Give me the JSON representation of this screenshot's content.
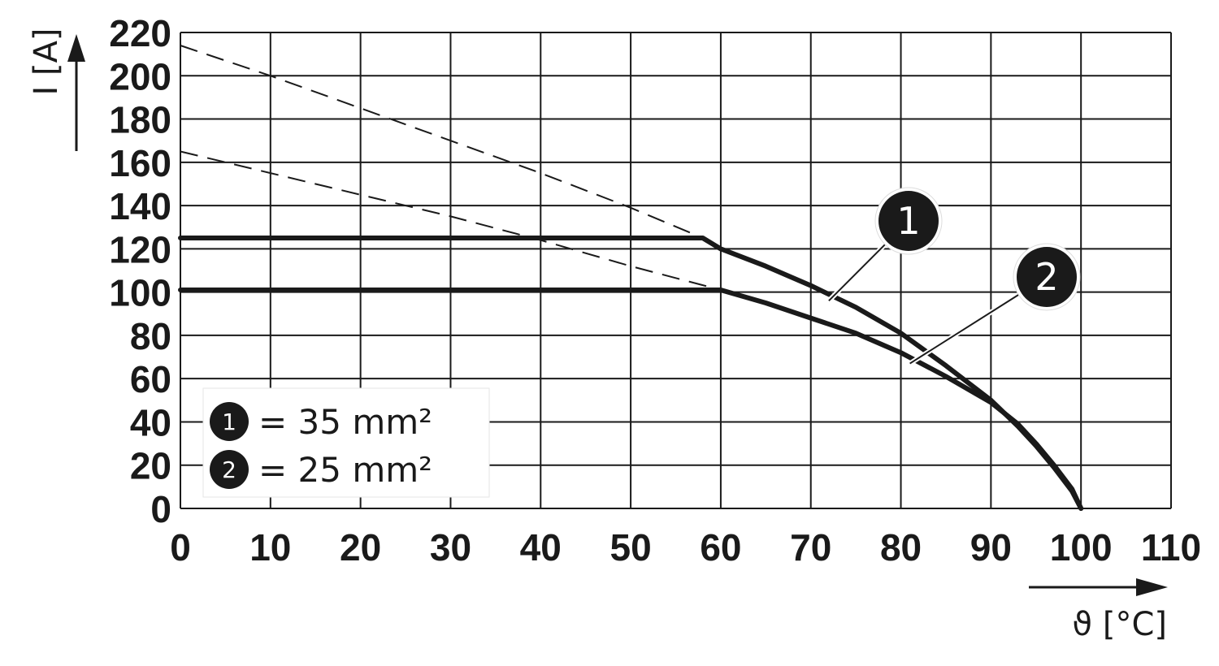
{
  "chart_data": {
    "type": "line",
    "xlabel": "ϑ [°C]",
    "ylabel": "I [A]",
    "xlim": [
      0,
      110
    ],
    "ylim": [
      0,
      220
    ],
    "x_ticks": [
      0,
      10,
      20,
      30,
      40,
      50,
      60,
      70,
      80,
      90,
      100,
      110
    ],
    "y_ticks": [
      0,
      20,
      40,
      60,
      80,
      100,
      120,
      140,
      160,
      180,
      200,
      220
    ],
    "grid": true,
    "legend_position": "bottom-left",
    "legend": [
      {
        "marker": "1",
        "text": "= 35 mm²"
      },
      {
        "marker": "2",
        "text": "= 25 mm²"
      }
    ],
    "series": [
      {
        "marker": "1",
        "solid": [
          [
            0,
            125
          ],
          [
            58,
            125
          ],
          [
            60,
            120
          ],
          [
            65,
            112
          ],
          [
            70,
            103
          ],
          [
            75,
            93
          ],
          [
            80,
            81
          ],
          [
            85,
            66
          ],
          [
            90,
            50
          ],
          [
            93,
            38
          ],
          [
            95,
            29
          ],
          [
            97,
            19
          ],
          [
            99,
            8
          ],
          [
            100,
            0
          ]
        ],
        "dashed": [
          [
            0,
            214
          ],
          [
            10,
            200
          ],
          [
            20,
            185
          ],
          [
            30,
            170
          ],
          [
            40,
            155
          ],
          [
            50,
            139
          ],
          [
            58,
            125
          ]
        ]
      },
      {
        "marker": "2",
        "solid": [
          [
            0,
            101
          ],
          [
            60,
            101
          ],
          [
            65,
            95
          ],
          [
            70,
            88
          ],
          [
            75,
            81
          ],
          [
            80,
            72
          ],
          [
            85,
            61
          ],
          [
            90,
            49
          ],
          [
            93,
            39
          ],
          [
            95,
            30
          ],
          [
            97,
            20
          ],
          [
            99,
            9
          ],
          [
            100,
            0
          ]
        ],
        "dashed": [
          [
            0,
            165
          ],
          [
            10,
            155
          ],
          [
            20,
            145
          ],
          [
            30,
            135
          ],
          [
            40,
            124
          ],
          [
            50,
            112
          ],
          [
            60,
            101
          ]
        ]
      }
    ],
    "callouts": [
      {
        "marker": "1",
        "target": [
          72,
          96
        ]
      },
      {
        "marker": "2",
        "target": [
          81,
          67
        ]
      }
    ]
  }
}
